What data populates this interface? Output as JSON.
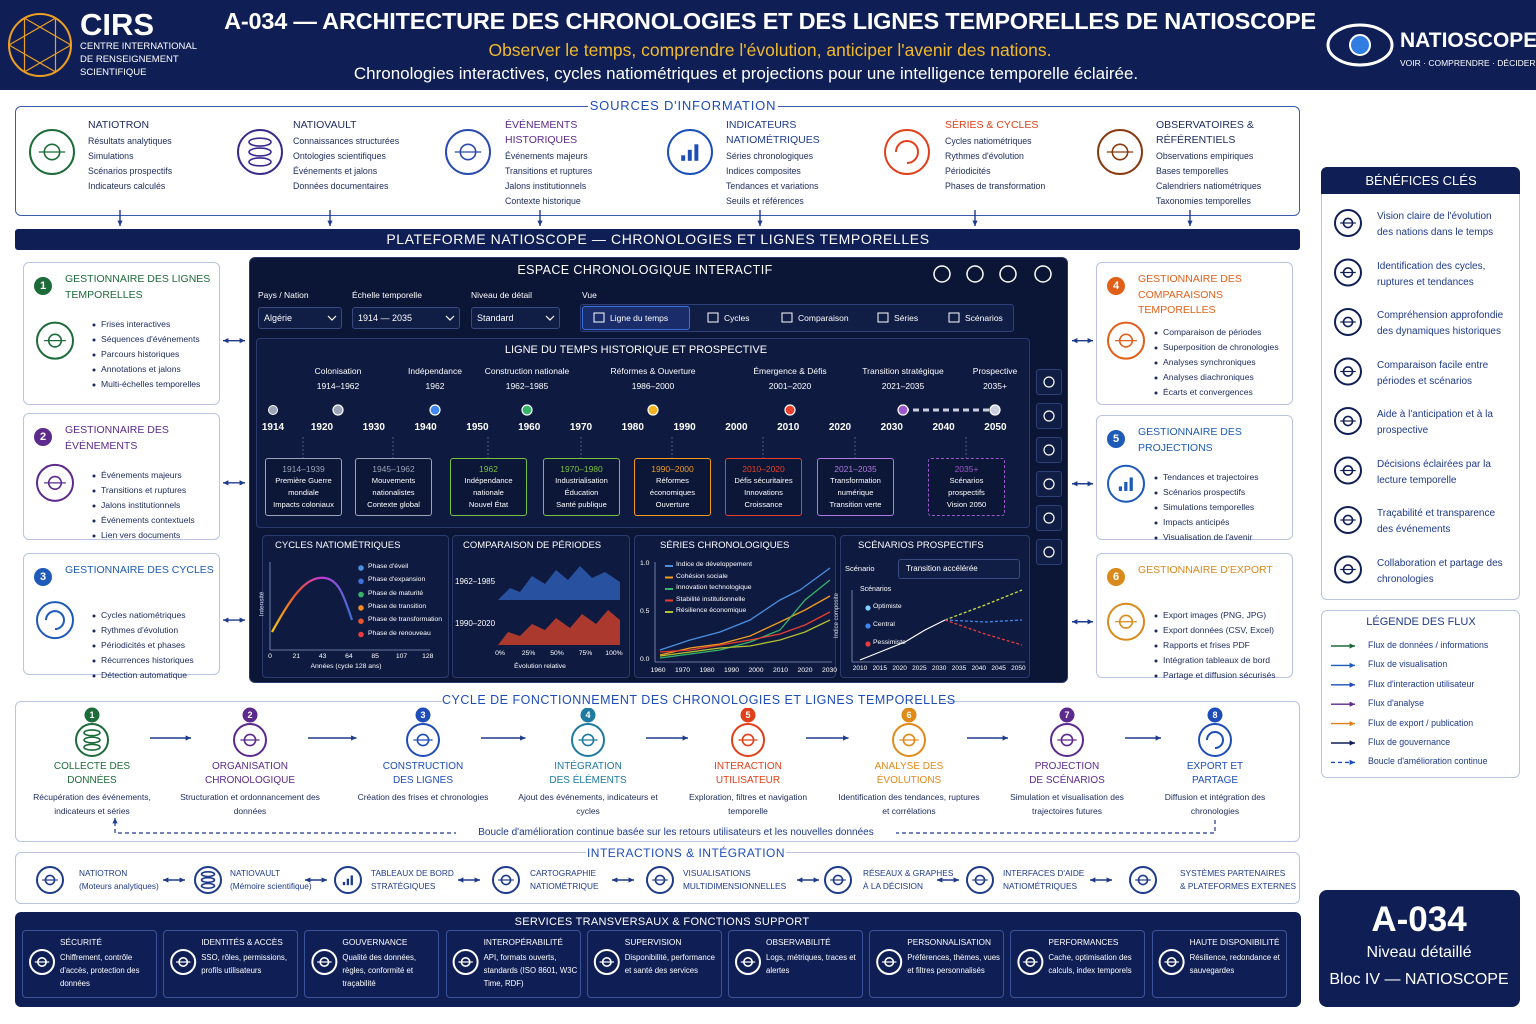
{
  "header": {
    "logo": "CIRS",
    "logo_lines": [
      "CENTRE INTERNATIONAL",
      "DE RENSEIGNEMENT",
      "SCIENTIFIQUE"
    ],
    "title": "A-034 — ARCHITECTURE DES CHRONOLOGIES ET DES LIGNES TEMPORELLES DE NATIOSCOPE",
    "tagline": "Observer le temps, comprendre l'évolution, anticiper l'avenir des nations.",
    "subtitle": "Chronologies interactives, cycles natiométriques et projections pour une intelligence temporelle éclairée.",
    "brand": "NATIOSCOPE",
    "brand_tagline": "VOIR · COMPRENDRE · DÉCIDER"
  },
  "sources": {
    "title": "SOURCES D'INFORMATION",
    "items": [
      {
        "title": [
          "NATIOTRON"
        ],
        "lines": [
          "Résultats analytiques",
          "Simulations",
          "Scénarios prospectifs",
          "Indicateurs calculés"
        ]
      },
      {
        "title": [
          "NATIOVAULT"
        ],
        "lines": [
          "Connaissances structurées",
          "Ontologies scientifiques",
          "Événements et jalons",
          "Données documentaires"
        ]
      },
      {
        "title": [
          "ÉVÉNEMENTS",
          "HISTORIQUES"
        ],
        "lines": [
          "Événements majeurs",
          "Transitions et ruptures",
          "Jalons institutionnels",
          "Contexte historique"
        ]
      },
      {
        "title": [
          "INDICATEURS",
          "NATIOMÉTRIQUES"
        ],
        "lines": [
          "Séries chronologiques",
          "Indices composites",
          "Tendances et variations",
          "Seuils et références"
        ]
      },
      {
        "title": [
          "SÉRIES & CYCLES"
        ],
        "lines": [
          "Cycles natiométriques",
          "Rythmes d'évolution",
          "Périodicités",
          "Phases de transformation"
        ]
      },
      {
        "title": [
          "OBSERVATOIRES &",
          "RÉFÉRENTIELS"
        ],
        "lines": [
          "Observations empiriques",
          "Bases temporelles",
          "Calendriers natiométriques",
          "Taxonomies temporelles"
        ]
      }
    ]
  },
  "platform": {
    "title": "PLATEFORME  NATIOSCOPE — CHRONOLOGIES ET LIGNES TEMPORELLES"
  },
  "managers_left": [
    {
      "num": "1",
      "title": [
        "GESTIONNAIRE DES LIGNES",
        "TEMPORELLES"
      ],
      "items": [
        "Frises interactives",
        "Séquences d'événements",
        "Parcours historiques",
        "Annotations et jalons",
        "Multi-échelles temporelles"
      ]
    },
    {
      "num": "2",
      "title": [
        "GESTIONNAIRE DES",
        "ÉVÉNEMENTS"
      ],
      "items": [
        "Événements majeurs",
        "Transitions et ruptures",
        "Jalons institutionnels",
        "Événements contextuels",
        "Lien vers documents"
      ]
    },
    {
      "num": "3",
      "title": [
        "GESTIONNAIRE DES CYCLES"
      ],
      "items": [
        "Cycles natiométriques",
        "Rythmes d'évolution",
        "Périodicités et phases",
        "Récurrences historiques",
        "Détection automatique"
      ]
    }
  ],
  "managers_right": [
    {
      "num": "4",
      "title": [
        "GESTIONNAIRE DES",
        "COMPARAISONS",
        "TEMPORELLES"
      ],
      "items": [
        "Comparaison de périodes",
        "Superposition de chronologies",
        "Analyses synchroniques",
        "Analyses diachroniques",
        "Écarts et convergences"
      ]
    },
    {
      "num": "5",
      "title": [
        "GESTIONNAIRE DES",
        "PROJECTIONS"
      ],
      "items": [
        "Tendances et trajectoires",
        "Scénarios prospectifs",
        "Simulations temporelles",
        "Impacts anticipés",
        "Visualisation de l'avenir"
      ]
    },
    {
      "num": "6",
      "title": [
        "GESTIONNAIRE D'EXPORT"
      ],
      "items": [
        "Export images (PNG, JPG)",
        "Export données (CSV, Excel)",
        "Rapports et frises PDF",
        "Intégration tableaux de bord",
        "Partage et diffusion sécurisés"
      ]
    }
  ],
  "workspace": {
    "title": "ESPACE CHRONOLOGIQUE INTERACTIF",
    "filters": [
      {
        "label": "Pays / Nation",
        "value": "Algérie"
      },
      {
        "label": "Échelle temporelle",
        "value": "1914 — 2035"
      },
      {
        "label": "Niveau de détail",
        "value": "Standard"
      }
    ],
    "view_label": "Vue",
    "tabs": [
      "Ligne du temps",
      "Cycles",
      "Comparaison",
      "Séries",
      "Scénarios"
    ],
    "timeline": {
      "title": "LIGNE DU TEMPS HISTORIQUE ET PROSPECTIVE",
      "periods": [
        {
          "name": "Colonisation",
          "range": "1914–1962"
        },
        {
          "name": "Indépendance",
          "range": "1962"
        },
        {
          "name": "Construction nationale",
          "range": "1962–1985"
        },
        {
          "name": "Réformes & Ouverture",
          "range": "1986–2000"
        },
        {
          "name": "Émergence & Défis",
          "range": "2001–2020"
        },
        {
          "name": "Transition stratégique",
          "range": "2021–2035"
        },
        {
          "name": "Prospective",
          "range": "2035+"
        }
      ],
      "years": [
        "1914",
        "1920",
        "1930",
        "1940",
        "1950",
        "1960",
        "1970",
        "1980",
        "1990",
        "2000",
        "2010",
        "2020",
        "2030",
        "2040",
        "2050"
      ],
      "cards": [
        [
          "1914–1939",
          "Première Guerre",
          "mondiale",
          "Impacts coloniaux"
        ],
        [
          "1945–1962",
          "Mouvements",
          "nationalistes",
          "Contexte global"
        ],
        [
          "1962",
          "Indépendance",
          "nationale",
          "Nouvel État"
        ],
        [
          "1970–1980",
          "Industrialisation",
          "Éducation",
          "Santé publique"
        ],
        [
          "1990–2000",
          "Réformes",
          "économiques",
          "Ouverture"
        ],
        [
          "2010–2020",
          "Défis sécuritaires",
          "Innovations",
          "Croissance"
        ],
        [
          "2021–2035",
          "Transformation",
          "numérique",
          "Transition verte"
        ],
        [
          "2035+",
          "Scénarios",
          "prospectifs",
          "Vision 2050"
        ]
      ]
    },
    "cycles": {
      "title": "CYCLES NATIOMÉTRIQUES",
      "y_label": "Intensité",
      "legend": [
        "Phase d'éveil",
        "Phase d'expansion",
        "Phase de maturité",
        "Phase de transition",
        "Phase de transformation",
        "Phase de renouveau"
      ],
      "xticks": [
        "0",
        "21",
        "43",
        "64",
        "85",
        "107",
        "128"
      ],
      "x_label": "Années (cycle 128 ans)"
    },
    "comparison": {
      "title": "COMPARAISON DE PÉRIODES",
      "rows": [
        "1962–1985",
        "1990–2020"
      ],
      "xticks": [
        "0%",
        "25%",
        "50%",
        "75%",
        "100%"
      ],
      "x_label": "Évolution relative"
    },
    "series": {
      "title": "SÉRIES CHRONOLOGIQUES",
      "legend": [
        "Indice de développement",
        "Cohésion sociale",
        "Innovation technologique",
        "Stabilité institutionnelle",
        "Résilience économique"
      ],
      "yticks": [
        "1.0",
        "0.5",
        "0.0"
      ],
      "xticks": [
        "1960",
        "1970",
        "1980",
        "1990",
        "2000",
        "2010",
        "2020",
        "2030"
      ]
    },
    "scenarios": {
      "title": "SCÉNARIOS PROSPECTIFS",
      "select_label": "Scénario",
      "select_value": "Transition accélérée",
      "legend_title": "Scénarios",
      "legend": [
        "Optimiste",
        "Central",
        "Pessimiste"
      ],
      "y_label": "Indice composite",
      "xticks": [
        "2010",
        "2015",
        "2020",
        "2025",
        "2030",
        "2035",
        "2040",
        "2045",
        "2050"
      ]
    }
  },
  "benefits": {
    "title": "BÉNÉFICES CLÉS",
    "items": [
      "Vision claire de l'évolution des nations dans le temps",
      "Identification des cycles, ruptures et tendances",
      "Compréhension approfondie des dynamiques historiques",
      "Comparaison facile entre périodes et scénarios",
      "Aide à l'anticipation et à la prospective",
      "Décisions éclairées par la lecture temporelle",
      "Traçabilité et transparence des événements",
      "Collaboration et partage des chronologies"
    ]
  },
  "flow_legend": {
    "title": "LÉGENDE DES FLUX",
    "items": [
      "Flux de données / informations",
      "Flux de visualisation",
      "Flux d'interaction utilisateur",
      "Flux d'analyse",
      "Flux de export / publication",
      "Flux de gouvernance",
      "Boucle d'amélioration continue"
    ]
  },
  "cycle": {
    "title": "CYCLE DE FONCTIONNEMENT DES CHRONOLOGIES ET LIGNES TEMPORELLES",
    "steps": [
      {
        "num": "1",
        "title": [
          "COLLECTE DES",
          "DONNÉES"
        ],
        "desc": "Récupération des événements, indicateurs et séries"
      },
      {
        "num": "2",
        "title": [
          "ORGANISATION",
          "CHRONOLOGIQUE"
        ],
        "desc": "Structuration et ordonnancement des données"
      },
      {
        "num": "3",
        "title": [
          "CONSTRUCTION",
          "DES LIGNES"
        ],
        "desc": "Création des frises et chronologies"
      },
      {
        "num": "4",
        "title": [
          "INTÉGRATION",
          "DES ÉLÉMENTS"
        ],
        "desc": "Ajout des événements, indicateurs et cycles"
      },
      {
        "num": "5",
        "title": [
          "INTERACTION",
          "UTILISATEUR"
        ],
        "desc": "Exploration, filtres et navigation temporelle"
      },
      {
        "num": "6",
        "title": [
          "ANALYSE DES",
          "ÉVOLUTIONS"
        ],
        "desc": "Identification des tendances, ruptures et corrélations"
      },
      {
        "num": "7",
        "title": [
          "PROJECTION",
          "DE SCÉNARIOS"
        ],
        "desc": "Simulation et visualisation des trajectoires futures"
      },
      {
        "num": "8",
        "title": [
          "EXPORT ET",
          "PARTAGE"
        ],
        "desc": "Diffusion et intégration des chronologies"
      }
    ],
    "loop": "Boucle d'amélioration continue basée sur les retours utilisateurs et les nouvelles données"
  },
  "interactions": {
    "title": "INTERACTIONS & INTÉGRATION",
    "items": [
      [
        "NATIOTRON",
        "(Moteurs analytiques)"
      ],
      [
        "NATIOVAULT",
        "(Mémoire scientifique)"
      ],
      [
        "TABLEAUX DE BORD",
        "STRATÉGIQUES"
      ],
      [
        "CARTOGRAPHIE",
        "NATIOMÉTRIQUE"
      ],
      [
        "VISUALISATIONS",
        "MULTIDIMENSIONNELLES"
      ],
      [
        "RÉSEAUX & GRAPHES",
        "À LA DÉCISION"
      ],
      [
        "INTERFACES D'AIDE",
        "NATIOMÉTRIQUES"
      ],
      [
        "SYSTÈMES PARTENAIRES",
        "& PLATEFORMES EXTERNES"
      ]
    ]
  },
  "services": {
    "title": "SERVICES TRANSVERSAUX & FONCTIONS SUPPORT",
    "items": [
      {
        "title": "SÉCURITÉ",
        "desc": "Chiffrement, contrôle d'accès, protection des données"
      },
      {
        "title": "IDENTITÉS & ACCÈS",
        "desc": "SSO, rôles, permissions, profils utilisateurs"
      },
      {
        "title": "GOUVERNANCE",
        "desc": "Qualité des données, règles, conformité et traçabilité"
      },
      {
        "title": "INTEROPÉRABILITÉ",
        "desc": "API, formats ouverts, standards (ISO 8601, W3C Time, RDF)"
      },
      {
        "title": "SUPERVISION",
        "desc": "Disponibilité, performance et santé des services"
      },
      {
        "title": "OBSERVABILITÉ",
        "desc": "Logs, métriques, traces et alertes"
      },
      {
        "title": "PERSONNALISATION",
        "desc": "Préférences, thèmes, vues et filtres personnalisés"
      },
      {
        "title": "PERFORMANCES",
        "desc": "Cache, optimisation des calculs, index temporels"
      },
      {
        "title": "HAUTE DISPONIBILITÉ",
        "desc": "Résilience, redondance et sauvegardes"
      }
    ]
  },
  "badge": {
    "code": "A-034",
    "level": "Niveau détaillé",
    "block": "Bloc IV — NATIOSCOPE"
  }
}
